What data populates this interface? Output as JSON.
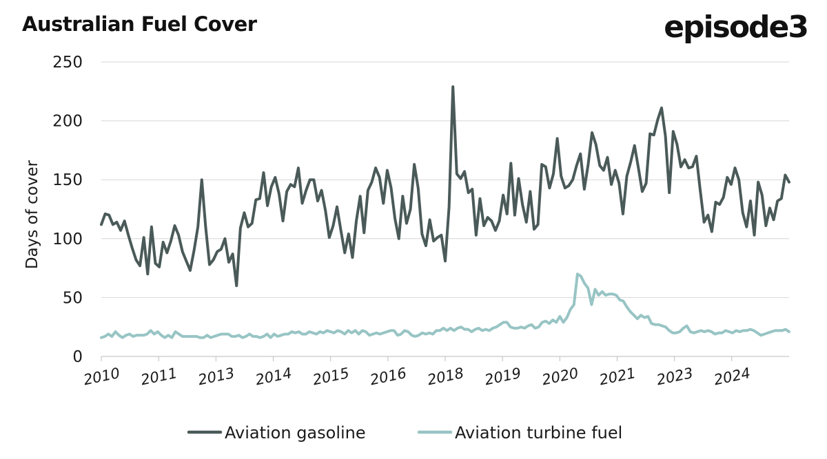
{
  "header": {
    "title": "Australian Fuel Cover",
    "brand": "episode3"
  },
  "chart_data": {
    "type": "line",
    "title": "Australian Fuel Cover",
    "ylabel": "Days of cover",
    "xlabel": "",
    "ylim": [
      0,
      250
    ],
    "y_ticks": [
      0,
      50,
      100,
      150,
      200,
      250
    ],
    "x_tick_labels": [
      "2010",
      "2011",
      "2013",
      "2014",
      "2015",
      "2016",
      "2018",
      "2019",
      "2020",
      "2021",
      "2023",
      "2024"
    ],
    "grid": "horizontal",
    "legend": "bottom-center",
    "series": [
      {
        "name": "Aviation gasoline",
        "color": "#4a5a59",
        "values": [
          112,
          121,
          120,
          112,
          114,
          107,
          115,
          103,
          92,
          82,
          77,
          101,
          70,
          110,
          79,
          76,
          97,
          88,
          98,
          111,
          103,
          89,
          81,
          73,
          90,
          110,
          150,
          110,
          78,
          82,
          89,
          91,
          100,
          80,
          87,
          60,
          109,
          122,
          110,
          113,
          133,
          134,
          156,
          128,
          144,
          152,
          138,
          115,
          140,
          146,
          144,
          160,
          130,
          141,
          150,
          150,
          132,
          141,
          124,
          101,
          111,
          127,
          107,
          88,
          104,
          84,
          115,
          136,
          105,
          141,
          148,
          160,
          152,
          130,
          158,
          143,
          117,
          100,
          136,
          113,
          125,
          163,
          143,
          104,
          94,
          116,
          98,
          101,
          103,
          81,
          127,
          229,
          155,
          151,
          157,
          139,
          142,
          103,
          134,
          111,
          118,
          115,
          107,
          115,
          137,
          121,
          164,
          120,
          151,
          129,
          114,
          140,
          108,
          112,
          163,
          161,
          143,
          155,
          185,
          153,
          143,
          145,
          150,
          162,
          172,
          142,
          163,
          190,
          180,
          162,
          158,
          169,
          146,
          158,
          147,
          121,
          153,
          165,
          179,
          160,
          140,
          147,
          189,
          188,
          201,
          211,
          187,
          139,
          191,
          180,
          161,
          167,
          160,
          161,
          170,
          141,
          114,
          120,
          106,
          131,
          129,
          135,
          152,
          146,
          160,
          150,
          122,
          110,
          132,
          103,
          148,
          137,
          111,
          126,
          116,
          132,
          134,
          154,
          148
        ]
      },
      {
        "name": "Aviation turbine fuel",
        "color": "#98c4c4",
        "values": [
          16,
          17,
          19,
          17,
          21,
          18,
          16,
          18,
          19,
          17,
          18,
          18,
          18,
          19,
          22,
          19,
          21,
          18,
          16,
          18,
          16,
          21,
          19,
          17,
          17,
          17,
          17,
          17,
          16,
          16,
          18,
          16,
          17,
          18,
          19,
          19,
          19,
          17,
          17,
          18,
          16,
          17,
          19,
          17,
          17,
          16,
          17,
          19,
          16,
          19,
          17,
          18,
          19,
          19,
          21,
          20,
          21,
          19,
          19,
          21,
          20,
          19,
          21,
          20,
          22,
          21,
          20,
          22,
          21,
          19,
          22,
          20,
          22,
          19,
          22,
          21,
          18,
          19,
          20,
          19,
          20,
          21,
          22,
          22,
          18,
          19,
          22,
          21,
          18,
          17,
          18,
          20,
          19,
          20,
          19,
          22,
          22,
          24,
          22,
          24,
          22,
          24,
          25,
          23,
          23,
          21,
          23,
          24,
          22,
          23,
          22,
          24,
          25,
          27,
          29,
          29,
          25,
          24,
          24,
          25,
          24,
          26,
          27,
          24,
          25,
          29,
          30,
          28,
          31,
          29,
          34,
          29,
          33,
          40,
          44,
          70,
          68,
          62,
          58,
          44,
          57,
          52,
          55,
          52,
          53,
          53,
          52,
          48,
          47,
          42,
          38,
          35,
          32,
          35,
          33,
          34,
          28,
          27,
          27,
          26,
          25,
          22,
          20,
          20,
          21,
          24,
          26,
          21,
          20,
          21,
          22,
          21,
          22,
          21,
          19,
          20,
          20,
          22,
          21,
          20,
          22,
          21,
          22,
          22,
          23,
          22,
          20,
          18,
          19,
          20,
          21,
          22,
          22,
          22,
          23,
          21
        ]
      }
    ]
  }
}
